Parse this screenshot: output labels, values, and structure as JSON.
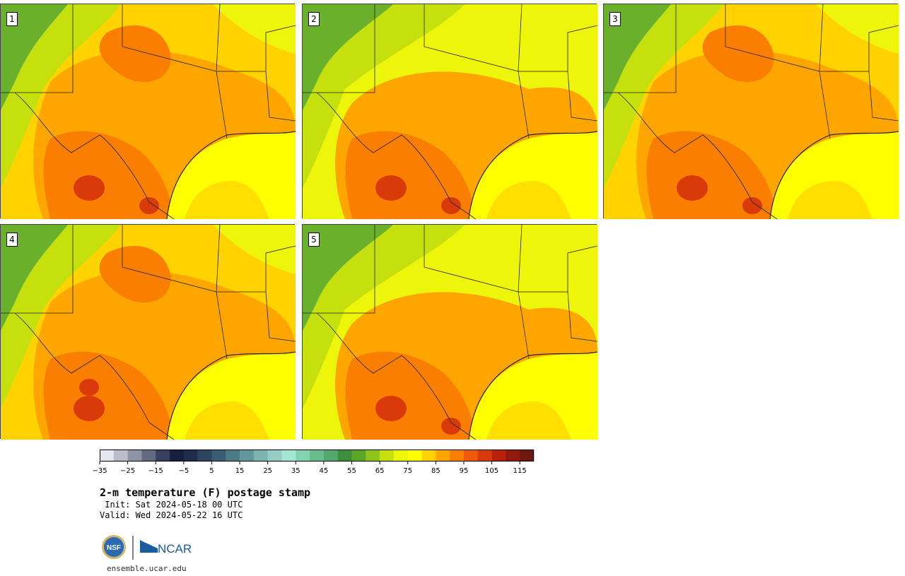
{
  "panels": [
    {
      "label": "1",
      "variant": 1
    },
    {
      "label": "2",
      "variant": 2
    },
    {
      "label": "3",
      "variant": 3
    },
    {
      "label": "4",
      "variant": 4
    },
    {
      "label": "5",
      "variant": 5
    }
  ],
  "colorbar": {
    "ticks": [
      "−35",
      "−25",
      "−15",
      "−5",
      "5",
      "15",
      "25",
      "35",
      "45",
      "55",
      "65",
      "75",
      "85",
      "95",
      "105",
      "115"
    ],
    "colors": [
      "#e6e6ee",
      "#bcbccb",
      "#8f93a6",
      "#626a82",
      "#37405e",
      "#161f3e",
      "#1f2c4c",
      "#2b4560",
      "#3a5d73",
      "#4c7a87",
      "#62979b",
      "#7cb4b0",
      "#97ccc5",
      "#a3e6d6",
      "#84d3b0",
      "#69bc8c",
      "#55a86d",
      "#3d8f3d",
      "#5aa625",
      "#90c417",
      "#c6e00e",
      "#edf50a",
      "#ffff00",
      "#ffd200",
      "#ffa500",
      "#fa7e00",
      "#ee5a0a",
      "#d83a0a",
      "#b8220b",
      "#92190e",
      "#6f180f"
    ]
  },
  "title": "2-m temperature (F) postage stamp",
  "init": " Init: Sat 2024-05-18 00 UTC",
  "valid": "Valid: Wed 2024-05-22 16 UTC",
  "logos": {
    "nsf": "NSF",
    "ncar": "NCAR"
  },
  "url": "ensemble.ucar.edu",
  "map_colors": {
    "cold": "#6ab02a",
    "cool": "#c6e00e",
    "mild": "#edf50a",
    "warm": "#ffd200",
    "hot": "#ffa500",
    "hotter": "#fa7e00",
    "hottest": "#d83a0a",
    "ocean": "#ffff00"
  }
}
